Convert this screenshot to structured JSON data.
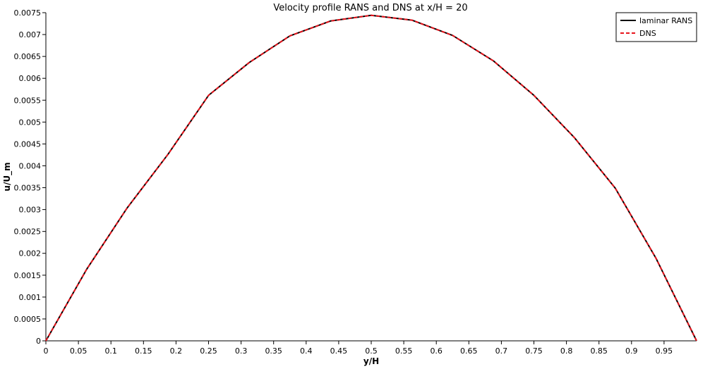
{
  "chart_data": {
    "type": "line",
    "title": "Velocity profile RANS and DNS  at x/H = 20",
    "xlabel": "y/H",
    "ylabel": "u/U_m",
    "xlim": [
      0,
      1
    ],
    "ylim": [
      0,
      0.0075
    ],
    "x_ticks": [
      "0",
      "0.05",
      "0.1",
      "0.15",
      "0.2",
      "0.25",
      "0.3",
      "0.35",
      "0.4",
      "0.45",
      "0.5",
      "0.55",
      "0.6",
      "0.65",
      "0.7",
      "0.75",
      "0.8",
      "0.85",
      "0.9",
      "0.95"
    ],
    "y_ticks": [
      "0",
      "0.0005",
      "0.001",
      "0.0015",
      "0.002",
      "0.0025",
      "0.003",
      "0.0035",
      "0.004",
      "0.0045",
      "0.005",
      "0.0055",
      "0.006",
      "0.0065",
      "0.007",
      "0.0075"
    ],
    "grid": false,
    "legend_position": "top-right",
    "series": [
      {
        "name": "laminar RANS",
        "color": "#000000",
        "style": "solid",
        "x": [
          0,
          0.0625,
          0.125,
          0.1875,
          0.25,
          0.3125,
          0.375,
          0.4375,
          0.5,
          0.5625,
          0.625,
          0.6875,
          0.75,
          0.8125,
          0.875,
          0.9375,
          1.0
        ],
        "y": [
          0,
          0.00163,
          0.00304,
          0.00426,
          0.00561,
          0.00636,
          0.00697,
          0.00731,
          0.00744,
          0.00733,
          0.00698,
          0.0064,
          0.00561,
          0.00464,
          0.00349,
          0.00189,
          0
        ]
      },
      {
        "name": "DNS",
        "color": "#e8141c",
        "style": "dashed",
        "x": [
          0,
          0.0625,
          0.125,
          0.1875,
          0.25,
          0.3125,
          0.375,
          0.4375,
          0.5,
          0.5625,
          0.625,
          0.6875,
          0.75,
          0.8125,
          0.875,
          0.9375,
          1.0
        ],
        "y": [
          0,
          0.00163,
          0.00304,
          0.00426,
          0.00561,
          0.00636,
          0.00697,
          0.00731,
          0.00744,
          0.00733,
          0.00698,
          0.0064,
          0.00561,
          0.00464,
          0.00349,
          0.00189,
          0
        ]
      }
    ]
  }
}
